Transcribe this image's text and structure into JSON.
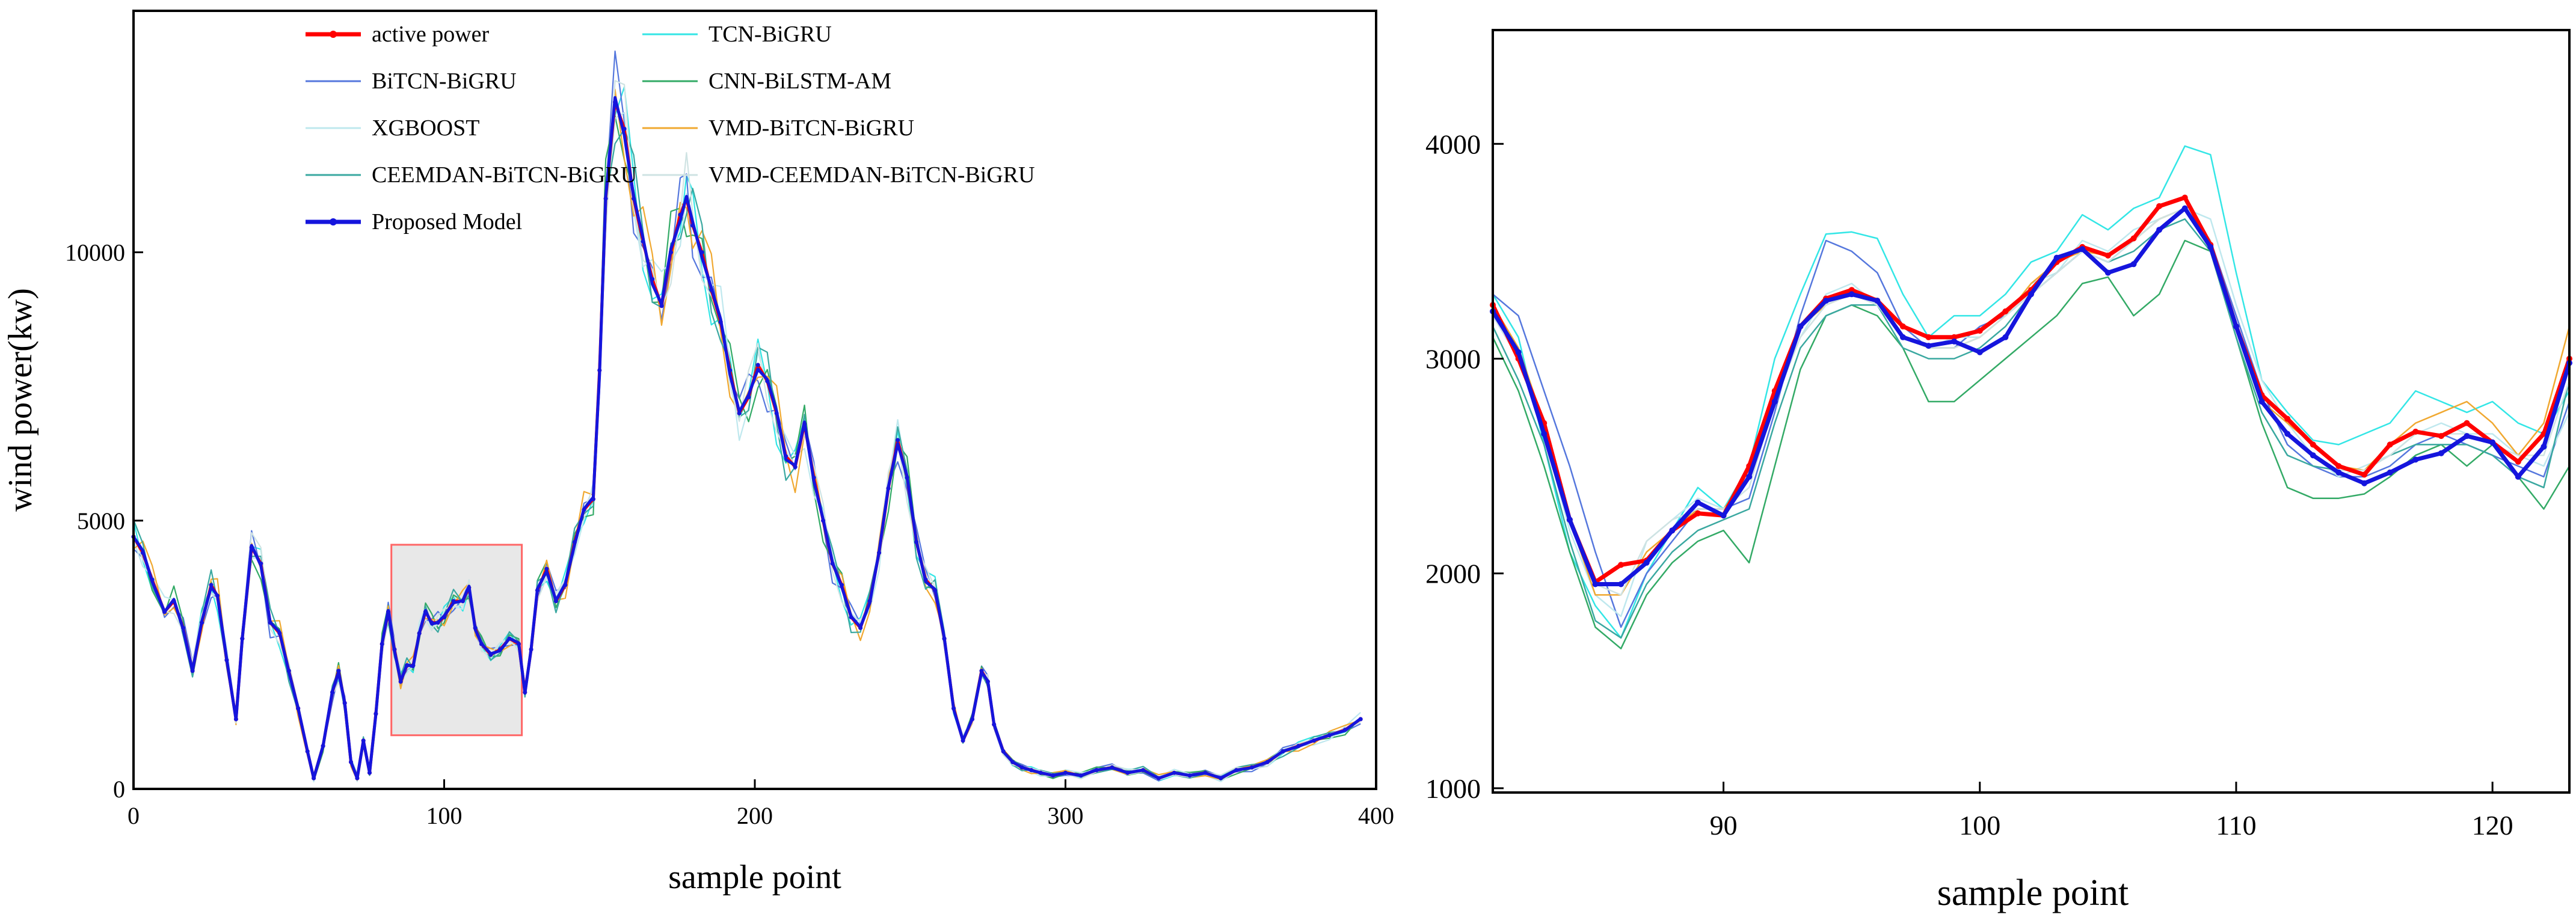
{
  "chart_data": [
    {
      "type": "line",
      "xlabel": "sample point",
      "ylabel": "wind power(kw)",
      "xlim": [
        0,
        400
      ],
      "ylim": [
        0,
        14500
      ],
      "xticks": [
        0,
        100,
        200,
        300,
        400
      ],
      "yticks": [
        0,
        5000,
        10000
      ],
      "grid": false,
      "legend": "top-left, two columns",
      "highlight_region": {
        "x": [
          83,
          125
        ],
        "y": [
          1000,
          4550
        ]
      },
      "series": [
        {
          "name": "active power",
          "color": "#ff0000",
          "marker": "dot"
        },
        {
          "name": "TCN-BiGRU",
          "color": "#33e6e6"
        },
        {
          "name": "BiTCN-BiGRU",
          "color": "#5577dd"
        },
        {
          "name": "CNN-BiLSTM-AM",
          "color": "#33aa66"
        },
        {
          "name": "XGBOOST",
          "color": "#bfe8ee"
        },
        {
          "name": "VMD-BiTCN-BiGRU",
          "color": "#f0a830"
        },
        {
          "name": "CEEMDAN-BiTCN-BiGRU",
          "color": "#3aa8a0"
        },
        {
          "name": "VMD-CEEMDAN-BiTCN-BiGRU",
          "color": "#cfe3e3"
        },
        {
          "name": "Proposed Model",
          "color": "#1515dd",
          "marker": "dot"
        }
      ],
      "main_curve": {
        "x": [
          0,
          3,
          6,
          10,
          13,
          16,
          19,
          22,
          25,
          27,
          30,
          33,
          35,
          38,
          41,
          44,
          47,
          50,
          53,
          56,
          58,
          61,
          64,
          66,
          68,
          70,
          72,
          74,
          76,
          78,
          80,
          82,
          84,
          86,
          88,
          90,
          92,
          94,
          96,
          98,
          100,
          103,
          106,
          108,
          110,
          112,
          115,
          118,
          121,
          124,
          126,
          128,
          130,
          133,
          136,
          139,
          142,
          145,
          148,
          150,
          152,
          155,
          158,
          161,
          164,
          167,
          170,
          173,
          176,
          178,
          180,
          183,
          186,
          189,
          192,
          195,
          198,
          201,
          204,
          207,
          210,
          213,
          216,
          219,
          222,
          225,
          228,
          231,
          234,
          237,
          240,
          243,
          246,
          249,
          252,
          255,
          258,
          261,
          264,
          267,
          270,
          273,
          275,
          277,
          280,
          283,
          286,
          289,
          292,
          296,
          300,
          305,
          310,
          315,
          320,
          325,
          330,
          335,
          340,
          345,
          350,
          355,
          360,
          365,
          370,
          375,
          380,
          385,
          390,
          395
        ],
        "y": [
          4700,
          4400,
          3900,
          3300,
          3500,
          3000,
          2200,
          3100,
          3800,
          3600,
          2400,
          1300,
          2800,
          4500,
          4200,
          3100,
          2900,
          2200,
          1500,
          700,
          200,
          800,
          1800,
          2200,
          1600,
          500,
          200,
          900,
          300,
          1400,
          2700,
          3300,
          2600,
          2000,
          2300,
          2300,
          2900,
          3300,
          3100,
          3100,
          3200,
          3500,
          3500,
          3750,
          3000,
          2700,
          2500,
          2600,
          2800,
          2700,
          1800,
          2600,
          3700,
          4100,
          3500,
          3800,
          4600,
          5200,
          5400,
          7800,
          11000,
          12800,
          12300,
          11000,
          10200,
          9500,
          9000,
          10000,
          10700,
          11000,
          10500,
          10000,
          9300,
          8700,
          7800,
          7000,
          7300,
          7900,
          7600,
          7000,
          6200,
          6000,
          6800,
          5800,
          5000,
          4200,
          3800,
          3200,
          3000,
          3500,
          4400,
          5600,
          6500,
          5800,
          4600,
          3900,
          3700,
          2800,
          1500,
          900,
          1300,
          2200,
          2000,
          1200,
          700,
          500,
          400,
          350,
          300,
          250,
          300,
          250,
          350,
          400,
          300,
          350,
          200,
          300,
          250,
          300,
          200,
          350,
          400,
          500,
          700,
          800,
          900,
          1000,
          1100,
          1300
        ]
      }
    },
    {
      "type": "line",
      "xlabel": "sample point",
      "ylabel": "",
      "xlim": [
        81,
        123
      ],
      "ylim": [
        980,
        4530
      ],
      "xticks": [
        90,
        100,
        110,
        120
      ],
      "yticks": [
        1000,
        2000,
        3000,
        4000
      ],
      "grid": false,
      "legend": "none",
      "x": [
        81,
        82,
        83,
        84,
        85,
        86,
        87,
        88,
        89,
        90,
        91,
        92,
        93,
        94,
        95,
        96,
        97,
        98,
        99,
        100,
        101,
        102,
        103,
        104,
        105,
        106,
        107,
        108,
        109,
        110,
        111,
        112,
        113,
        114,
        115,
        116,
        117,
        118,
        119,
        120,
        121,
        122,
        123
      ],
      "series": [
        {
          "name": "active power",
          "color": "#ff0000",
          "values": [
            3250,
            3000,
            2700,
            2250,
            1960,
            2040,
            2060,
            2200,
            2280,
            2270,
            2500,
            2850,
            3150,
            3280,
            3320,
            3270,
            3150,
            3100,
            3100,
            3130,
            3220,
            3320,
            3450,
            3520,
            3480,
            3560,
            3710,
            3750,
            3530,
            3150,
            2830,
            2720,
            2600,
            2500,
            2460,
            2600,
            2660,
            2640,
            2700,
            2610,
            2520,
            2650,
            3000
          ]
        },
        {
          "name": "TCN-BiGRU",
          "color": "#33e6e6",
          "values": [
            3300,
            3100,
            2600,
            2100,
            1850,
            1700,
            2000,
            2200,
            2400,
            2300,
            2500,
            3000,
            3300,
            3580,
            3590,
            3560,
            3300,
            3100,
            3200,
            3200,
            3300,
            3450,
            3500,
            3670,
            3600,
            3700,
            3750,
            3990,
            3950,
            3400,
            2900,
            2750,
            2620,
            2600,
            2650,
            2700,
            2850,
            2800,
            2750,
            2800,
            2700,
            2650,
            2850
          ]
        },
        {
          "name": "BiTCN-BiGRU",
          "color": "#5577dd",
          "values": [
            3300,
            3200,
            2850,
            2500,
            2100,
            1750,
            2000,
            2150,
            2300,
            2300,
            2350,
            2750,
            3200,
            3550,
            3500,
            3400,
            3150,
            3050,
            3050,
            3150,
            3200,
            3300,
            3400,
            3500,
            3450,
            3550,
            3650,
            3700,
            3550,
            3200,
            2850,
            2600,
            2500,
            2450,
            2450,
            2500,
            2600,
            2650,
            2600,
            2550,
            2500,
            2450,
            2800
          ]
        },
        {
          "name": "CNN-BiLSTM-AM",
          "color": "#33aa66",
          "values": [
            3100,
            2850,
            2500,
            2100,
            1750,
            1650,
            1900,
            2050,
            2150,
            2200,
            2050,
            2500,
            2950,
            3200,
            3250,
            3200,
            3050,
            2800,
            2800,
            2900,
            3000,
            3100,
            3200,
            3350,
            3380,
            3200,
            3300,
            3550,
            3500,
            3100,
            2700,
            2400,
            2350,
            2350,
            2370,
            2450,
            2550,
            2600,
            2500,
            2600,
            2450,
            2300,
            2500
          ]
        },
        {
          "name": "XGBOOST",
          "color": "#bfe8ee",
          "values": [
            3200,
            3000,
            2650,
            2200,
            1900,
            1800,
            2150,
            2250,
            2350,
            2300,
            2450,
            2800,
            3100,
            3300,
            3350,
            3250,
            3100,
            3050,
            3100,
            3100,
            3200,
            3350,
            3400,
            3550,
            3500,
            3600,
            3650,
            3700,
            3650,
            3250,
            2900,
            2700,
            2550,
            2450,
            2500,
            2550,
            2650,
            2700,
            2650,
            2650,
            2550,
            2500,
            2750
          ]
        },
        {
          "name": "VMD-BiTCN-BiGRU",
          "color": "#f0a830",
          "values": [
            3250,
            3050,
            2700,
            2250,
            1900,
            1900,
            2100,
            2200,
            2300,
            2300,
            2450,
            2800,
            3150,
            3250,
            3300,
            3280,
            3100,
            3050,
            3050,
            3100,
            3200,
            3350,
            3450,
            3500,
            3480,
            3550,
            3650,
            3700,
            3550,
            3150,
            2800,
            2700,
            2600,
            2500,
            2480,
            2600,
            2700,
            2750,
            2800,
            2700,
            2550,
            2700,
            3150
          ]
        },
        {
          "name": "CEEMDAN-BiTCN-BiGRU",
          "color": "#3aa8a0",
          "values": [
            3150,
            2900,
            2600,
            2150,
            1780,
            1700,
            1950,
            2100,
            2200,
            2250,
            2300,
            2700,
            3050,
            3200,
            3250,
            3250,
            3050,
            3000,
            3000,
            3050,
            3150,
            3300,
            3400,
            3500,
            3450,
            3500,
            3600,
            3650,
            3500,
            3100,
            2750,
            2550,
            2500,
            2480,
            2480,
            2550,
            2600,
            2600,
            2600,
            2550,
            2450,
            2400,
            2900
          ]
        },
        {
          "name": "VMD-CEEMDAN-BiTCN-BiGRU",
          "color": "#cfe3e3",
          "values": [
            3200,
            3000,
            2650,
            2250,
            1950,
            1900,
            2150,
            2250,
            2300,
            2300,
            2400,
            2800,
            3100,
            3250,
            3300,
            3250,
            3100,
            3050,
            3050,
            3100,
            3200,
            3300,
            3400,
            3500,
            3450,
            3550,
            3650,
            3700,
            3550,
            3150,
            2800,
            2650,
            2550,
            2480,
            2480,
            2550,
            2650,
            2650,
            2650,
            2600,
            2550,
            2550,
            2900
          ]
        },
        {
          "name": "Proposed Model",
          "color": "#1515dd",
          "values": [
            3220,
            3030,
            2650,
            2250,
            1950,
            1950,
            2050,
            2200,
            2330,
            2270,
            2450,
            2800,
            3150,
            3270,
            3300,
            3270,
            3100,
            3060,
            3080,
            3030,
            3100,
            3300,
            3470,
            3510,
            3400,
            3440,
            3600,
            3700,
            3520,
            3150,
            2800,
            2650,
            2550,
            2470,
            2420,
            2470,
            2530,
            2560,
            2640,
            2610,
            2450,
            2590,
            2980
          ]
        }
      ]
    }
  ]
}
